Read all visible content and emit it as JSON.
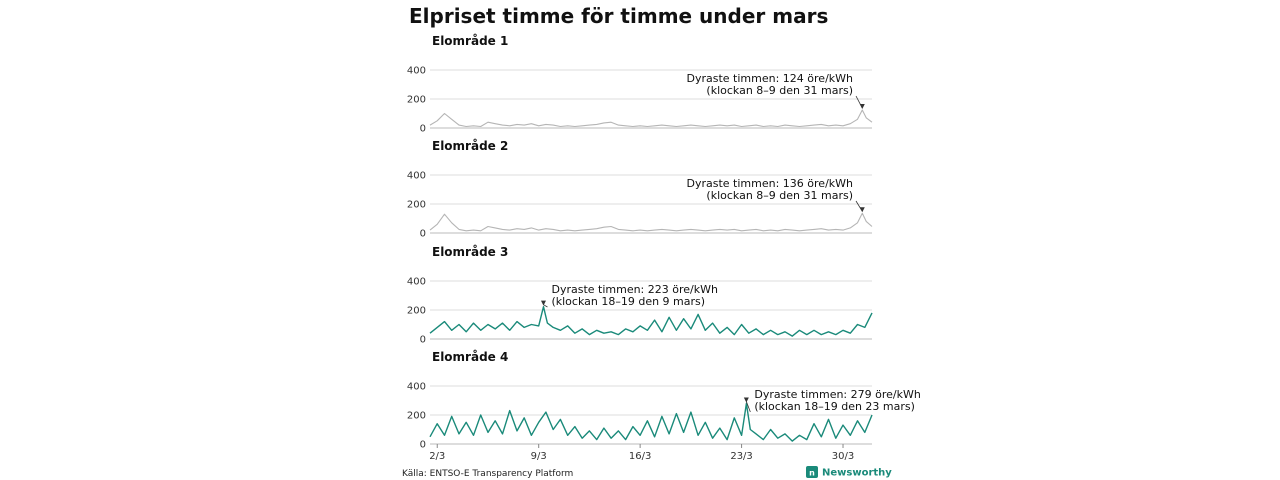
{
  "chart_data": {
    "type": "line",
    "title": "Elpriset timme för timme under mars",
    "source": "Källa: ENTSO-E Transparency Platform",
    "brand": "Newsworthy",
    "ylim": [
      0,
      400
    ],
    "y_ticks": [
      "0",
      "200",
      "400"
    ],
    "x_ticks": [
      {
        "label": "2/3",
        "day": 2
      },
      {
        "label": "9/3",
        "day": 9
      },
      {
        "label": "16/3",
        "day": 16
      },
      {
        "label": "23/3",
        "day": 23
      },
      {
        "label": "30/3",
        "day": 30
      }
    ],
    "x_range_days": [
      1.5,
      32
    ],
    "colors": {
      "muted": "#b5b5b5",
      "accent": "#1a8a7a",
      "brand": "#1a8a7a"
    },
    "panels": [
      {
        "name": "Elområde 1",
        "color_key": "muted",
        "series": {
          "name": "Elområde 1",
          "x": [
            1.5,
            2,
            2.5,
            3,
            3.5,
            4,
            4.5,
            5,
            5.5,
            6,
            6.5,
            7,
            7.5,
            8,
            8.5,
            9,
            9.5,
            10,
            10.5,
            11,
            11.5,
            12,
            12.5,
            13,
            13.5,
            14,
            14.5,
            15,
            15.5,
            16,
            16.5,
            17,
            17.5,
            18,
            18.5,
            19,
            19.5,
            20,
            20.5,
            21,
            21.5,
            22,
            22.5,
            23,
            23.5,
            24,
            24.5,
            25,
            25.5,
            26,
            26.5,
            27,
            27.5,
            28,
            28.5,
            29,
            29.5,
            30,
            30.5,
            31,
            31.33,
            31.6,
            32
          ],
          "values": [
            20,
            50,
            100,
            60,
            20,
            10,
            15,
            10,
            40,
            30,
            20,
            15,
            25,
            20,
            30,
            15,
            25,
            20,
            10,
            15,
            10,
            15,
            20,
            25,
            35,
            40,
            20,
            15,
            10,
            15,
            10,
            15,
            20,
            15,
            10,
            15,
            20,
            15,
            10,
            15,
            20,
            15,
            20,
            10,
            15,
            20,
            10,
            15,
            10,
            20,
            15,
            10,
            15,
            20,
            25,
            15,
            20,
            15,
            30,
            60,
            124,
            70,
            40
          ]
        },
        "annotation": {
          "line1": "Dyraste timmen: 124 öre/kWh",
          "line2": "(klockan 8–9 den 31 mars)",
          "x": 31.33,
          "value": 124
        }
      },
      {
        "name": "Elområde 2",
        "color_key": "muted",
        "series": {
          "name": "Elområde 2",
          "x": [
            1.5,
            2,
            2.5,
            3,
            3.5,
            4,
            4.5,
            5,
            5.5,
            6,
            6.5,
            7,
            7.5,
            8,
            8.5,
            9,
            9.5,
            10,
            10.5,
            11,
            11.5,
            12,
            12.5,
            13,
            13.5,
            14,
            14.5,
            15,
            15.5,
            16,
            16.5,
            17,
            17.5,
            18,
            18.5,
            19,
            19.5,
            20,
            20.5,
            21,
            21.5,
            22,
            22.5,
            23,
            23.5,
            24,
            24.5,
            25,
            25.5,
            26,
            26.5,
            27,
            27.5,
            28,
            28.5,
            29,
            29.5,
            30,
            30.5,
            31,
            31.33,
            31.6,
            32
          ],
          "values": [
            20,
            60,
            130,
            70,
            25,
            15,
            20,
            15,
            45,
            35,
            25,
            20,
            30,
            25,
            35,
            20,
            30,
            25,
            15,
            20,
            15,
            20,
            25,
            30,
            40,
            45,
            25,
            20,
            15,
            20,
            15,
            20,
            25,
            20,
            15,
            20,
            25,
            20,
            15,
            20,
            25,
            20,
            25,
            15,
            20,
            25,
            15,
            20,
            15,
            25,
            20,
            15,
            20,
            25,
            30,
            20,
            25,
            20,
            35,
            70,
            136,
            80,
            45
          ]
        },
        "annotation": {
          "line1": "Dyraste timmen: 136 öre/kWh",
          "line2": "(klockan 8–9 den 31 mars)",
          "x": 31.33,
          "value": 136
        }
      },
      {
        "name": "Elområde 3",
        "color_key": "accent",
        "series": {
          "name": "Elområde 3",
          "x": [
            1.5,
            2,
            2.5,
            3,
            3.5,
            4,
            4.5,
            5,
            5.5,
            6,
            6.5,
            7,
            7.5,
            8,
            8.5,
            9,
            9.33,
            9.6,
            10,
            10.5,
            11,
            11.5,
            12,
            12.5,
            13,
            13.5,
            14,
            14.5,
            15,
            15.5,
            16,
            16.5,
            17,
            17.5,
            18,
            18.5,
            19,
            19.5,
            20,
            20.5,
            21,
            21.5,
            22,
            22.5,
            23,
            23.5,
            24,
            24.5,
            25,
            25.5,
            26,
            26.5,
            27,
            27.5,
            28,
            28.5,
            29,
            29.5,
            30,
            30.5,
            31,
            31.5,
            32
          ],
          "values": [
            40,
            80,
            120,
            60,
            100,
            50,
            110,
            60,
            100,
            70,
            110,
            60,
            120,
            80,
            100,
            90,
            223,
            110,
            80,
            60,
            90,
            40,
            70,
            30,
            60,
            40,
            50,
            30,
            70,
            50,
            90,
            60,
            130,
            50,
            150,
            60,
            140,
            70,
            170,
            60,
            110,
            40,
            80,
            30,
            100,
            40,
            70,
            30,
            60,
            30,
            50,
            20,
            60,
            30,
            60,
            30,
            50,
            30,
            60,
            40,
            100,
            80,
            180
          ]
        },
        "annotation": {
          "line1": "Dyraste timmen: 223 öre/kWh",
          "line2": "(klockan 18–19 den 9 mars)",
          "x": 9.33,
          "value": 223
        }
      },
      {
        "name": "Elområde 4",
        "color_key": "accent",
        "series": {
          "name": "Elområde 4",
          "x": [
            1.5,
            2,
            2.5,
            3,
            3.5,
            4,
            4.5,
            5,
            5.5,
            6,
            6.5,
            7,
            7.5,
            8,
            8.5,
            9,
            9.5,
            10,
            10.5,
            11,
            11.5,
            12,
            12.5,
            13,
            13.5,
            14,
            14.5,
            15,
            15.5,
            16,
            16.5,
            17,
            17.5,
            18,
            18.5,
            19,
            19.5,
            20,
            20.5,
            21,
            21.5,
            22,
            22.5,
            23,
            23.33,
            23.6,
            24,
            24.5,
            25,
            25.5,
            26,
            26.5,
            27,
            27.5,
            28,
            28.5,
            29,
            29.5,
            30,
            30.5,
            31,
            31.5,
            32
          ],
          "values": [
            50,
            140,
            60,
            190,
            70,
            150,
            60,
            200,
            80,
            160,
            70,
            230,
            90,
            180,
            60,
            150,
            220,
            100,
            170,
            60,
            120,
            40,
            90,
            30,
            110,
            40,
            90,
            30,
            120,
            60,
            160,
            50,
            190,
            70,
            210,
            80,
            220,
            60,
            150,
            40,
            110,
            30,
            180,
            60,
            279,
            100,
            70,
            30,
            100,
            40,
            70,
            20,
            60,
            30,
            140,
            50,
            170,
            40,
            130,
            60,
            160,
            80,
            200
          ]
        },
        "annotation": {
          "line1": "Dyraste timmen: 279 öre/kWh",
          "line2": "(klockan 18–19 den 23 mars)",
          "x": 23.33,
          "value": 279
        }
      }
    ]
  }
}
